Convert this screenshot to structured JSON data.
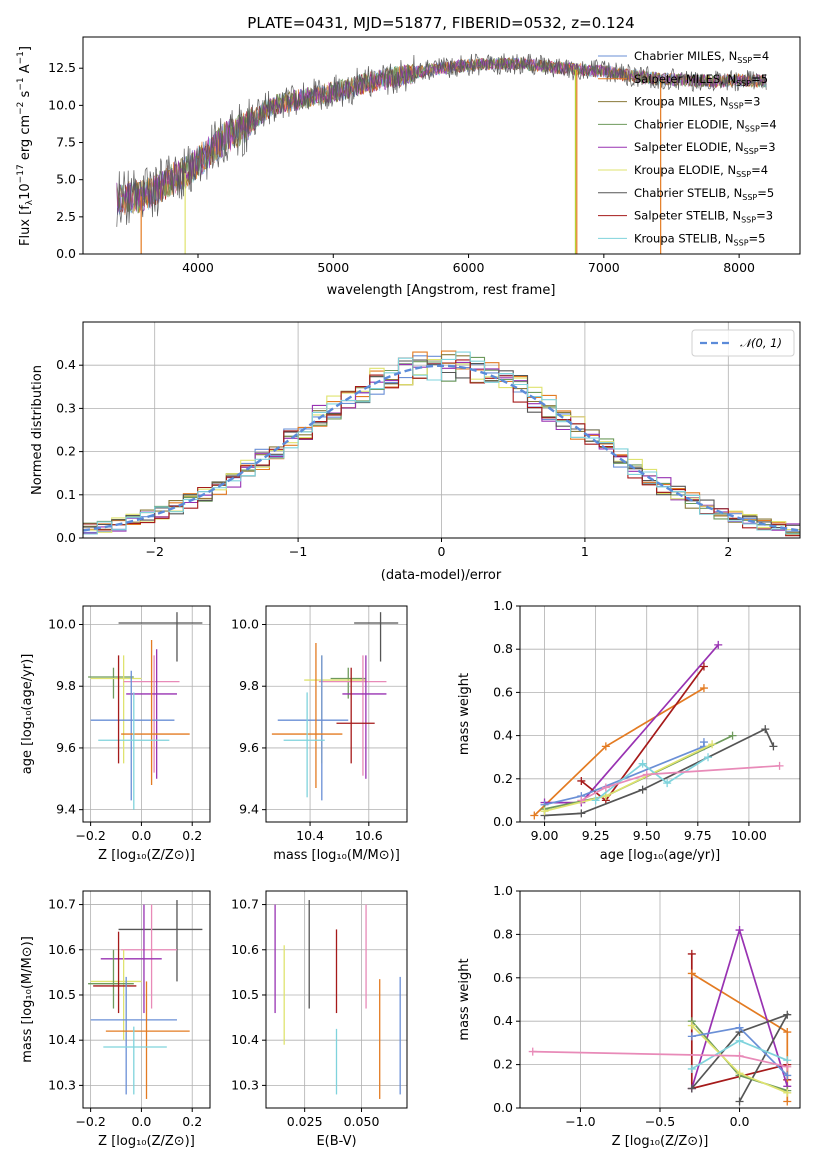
{
  "colors": {
    "c1": "#6a8fd6",
    "c2": "#e37b22",
    "c3": "#8a7a3a",
    "c4": "#6e9a5c",
    "c5": "#9832b2",
    "c6": "#dfe36f",
    "c7": "#555555",
    "c8": "#a51a1a",
    "c9": "#7fd3dc",
    "c10": "#e88ab8",
    "c11": "#b7d236",
    "c12": "#7a6fc2"
  },
  "chart_data": [
    {
      "id": "spectrum",
      "type": "line",
      "title": "PLATE=0431, MJD=51877, FIBERID=0532, z=0.124",
      "xlabel": "wavelength [Angstrom, rest frame]",
      "ylabel": "Flux [fλ10⁻¹⁷ erg cm⁻² s⁻¹ A⁻¹]",
      "xlim": [
        3150,
        8450
      ],
      "ylim": [
        0,
        14.6
      ],
      "xticks": [
        "4000",
        "5000",
        "6000",
        "7000",
        "8000"
      ],
      "yticks": [
        "0.0",
        "2.5",
        "5.0",
        "7.5",
        "10.0",
        "12.5"
      ],
      "grid": false,
      "legend_position": "top-right",
      "legend": [
        {
          "name": "Chabrier MILES, N",
          "sub": "SSP",
          "suffix": "=4"
        },
        {
          "name": "Salpeter MILES, N",
          "sub": "SSP",
          "suffix": "=5"
        },
        {
          "name": "Kroupa MILES, N",
          "sub": "SSP",
          "suffix": "=3"
        },
        {
          "name": "Chabrier ELODIE, N",
          "sub": "SSP",
          "suffix": "=4"
        },
        {
          "name": "Salpeter ELODIE, N",
          "sub": "SSP",
          "suffix": "=3"
        },
        {
          "name": "Kroupa ELODIE, N",
          "sub": "SSP",
          "suffix": "=4"
        },
        {
          "name": "Chabrier STELIB, N",
          "sub": "SSP",
          "suffix": "=5"
        },
        {
          "name": "Salpeter STELIB, N",
          "sub": "SSP",
          "suffix": "=3"
        },
        {
          "name": "Kroupa STELIB, N",
          "sub": "SSP",
          "suffix": "=5"
        }
      ],
      "continuum": [
        [
          3400,
          3.7
        ],
        [
          3500,
          3.8
        ],
        [
          3600,
          3.9
        ],
        [
          3700,
          4.4
        ],
        [
          3800,
          5.0
        ],
        [
          3900,
          5.4
        ],
        [
          4000,
          6.2
        ],
        [
          4100,
          7.0
        ],
        [
          4200,
          7.8
        ],
        [
          4300,
          8.3
        ],
        [
          4400,
          8.9
        ],
        [
          4500,
          9.7
        ],
        [
          4600,
          10.1
        ],
        [
          4700,
          10.3
        ],
        [
          4800,
          10.5
        ],
        [
          4900,
          10.7
        ],
        [
          5000,
          10.9
        ],
        [
          5100,
          11.1
        ],
        [
          5200,
          11.4
        ],
        [
          5300,
          11.6
        ],
        [
          5400,
          11.8
        ],
        [
          5500,
          12.0
        ],
        [
          5600,
          12.2
        ],
        [
          5700,
          12.4
        ],
        [
          5800,
          12.5
        ],
        [
          5900,
          12.6
        ],
        [
          6000,
          12.7
        ],
        [
          6200,
          12.8
        ],
        [
          6400,
          12.8
        ],
        [
          6600,
          12.6
        ],
        [
          6800,
          12.4
        ],
        [
          7000,
          12.3
        ],
        [
          7200,
          12.0
        ],
        [
          7400,
          11.8
        ],
        [
          7600,
          11.7
        ],
        [
          7800,
          11.6
        ],
        [
          8000,
          11.7
        ],
        [
          8200,
          11.6
        ]
      ],
      "drops": [
        {
          "x": 3580,
          "color": "c2"
        },
        {
          "x": 3905,
          "color": "c6"
        },
        {
          "x": 6790,
          "color": "c11"
        },
        {
          "x": 6800,
          "color": "c2"
        },
        {
          "x": 7420,
          "color": "c2"
        }
      ]
    },
    {
      "id": "residuals",
      "type": "histogram",
      "xlabel": "(data-model)/error",
      "ylabel": "Normed distribution",
      "xlim": [
        -2.5,
        2.5
      ],
      "ylim": [
        0,
        0.5
      ],
      "xticks": [
        "−2",
        "−1",
        "0",
        "1",
        "2"
      ],
      "yticks": [
        "0.0",
        "0.1",
        "0.2",
        "0.3",
        "0.4"
      ],
      "grid": true,
      "legend_position": "top-right",
      "legend_label": "𝒩(0, 1)",
      "bin_width": 0.1
    },
    {
      "id": "age-z",
      "type": "errorbar",
      "xlabel": "Z [log₁₀(Z/Z⊙)]",
      "ylabel": "age  [log₁₀(age/yr)]",
      "xlim": [
        -0.23,
        0.27
      ],
      "ylim": [
        9.36,
        10.06
      ],
      "xtick_values": [
        -0.2,
        0.0,
        0.2
      ],
      "xticks": [
        "−0.2",
        "0.0",
        "0.2"
      ],
      "ytick_values": [
        9.4,
        9.6,
        9.8,
        10.0
      ],
      "yticks": [
        "9.4",
        "9.6",
        "9.8",
        "10.0"
      ],
      "points": [
        {
          "x": 0.14,
          "xl": -0.09,
          "xh": 0.24,
          "y": 10.005,
          "yl": 9.88,
          "yh": 10.04,
          "color": "c7"
        },
        {
          "x": -0.11,
          "xl": -0.21,
          "xh": -0.03,
          "y": 9.83,
          "yl": 9.76,
          "yh": 9.86,
          "color": "c4"
        },
        {
          "x": -0.07,
          "xl": -0.2,
          "xh": 0.0,
          "y": 9.825,
          "yl": 9.55,
          "yh": 9.9,
          "color": "c6"
        },
        {
          "x": 0.05,
          "xl": -0.07,
          "xh": 0.15,
          "y": 9.815,
          "yl": 9.52,
          "yh": 9.9,
          "color": "c10"
        },
        {
          "x": 0.06,
          "xl": -0.06,
          "xh": 0.14,
          "y": 9.775,
          "yl": 9.5,
          "yh": 9.92,
          "color": "c5"
        },
        {
          "x": -0.04,
          "xl": -0.2,
          "xh": 0.13,
          "y": 9.69,
          "yl": 9.43,
          "yh": 9.85,
          "color": "c1"
        },
        {
          "x": 0.04,
          "xl": -0.08,
          "xh": 0.19,
          "y": 9.645,
          "yl": 9.48,
          "yh": 9.95,
          "color": "c2"
        },
        {
          "x": -0.03,
          "xl": -0.17,
          "xh": 0.11,
          "y": 9.625,
          "yl": 9.4,
          "yh": 9.78,
          "color": "c9"
        },
        {
          "x": -0.09,
          "xl": -0.09,
          "xh": -0.09,
          "y": 9.72,
          "yl": 9.55,
          "yh": 9.9,
          "color": "c8"
        }
      ]
    },
    {
      "id": "age-mass",
      "type": "errorbar",
      "xlabel": "mass [log₁₀(M/M⊙)]",
      "ylabel": "",
      "xlim": [
        10.25,
        10.73
      ],
      "ylim": [
        9.36,
        10.06
      ],
      "xtick_values": [
        10.4,
        10.6
      ],
      "xticks": [
        "10.4",
        "10.6"
      ],
      "ytick_values": [
        9.4,
        9.6,
        9.8,
        10.0
      ],
      "yticks": [
        "9.4",
        "9.6",
        "9.8",
        "10.0"
      ],
      "points": [
        {
          "x": 10.64,
          "xl": 10.55,
          "xh": 10.7,
          "y": 10.005,
          "yl": 9.88,
          "yh": 10.04,
          "color": "c7"
        },
        {
          "x": 10.53,
          "xl": 10.47,
          "xh": 10.59,
          "y": 9.825,
          "yl": 9.76,
          "yh": 9.86,
          "color": "c4"
        },
        {
          "x": 10.44,
          "xl": 10.38,
          "xh": 10.59,
          "y": 9.82,
          "yl": 9.55,
          "yh": 9.9,
          "color": "c6"
        },
        {
          "x": 10.58,
          "xl": 10.43,
          "xh": 10.66,
          "y": 9.815,
          "yl": 9.51,
          "yh": 9.9,
          "color": "c10"
        },
        {
          "x": 10.59,
          "xl": 10.51,
          "xh": 10.66,
          "y": 9.775,
          "yl": 9.5,
          "yh": 9.9,
          "color": "c5"
        },
        {
          "x": 10.44,
          "xl": 10.29,
          "xh": 10.53,
          "y": 9.69,
          "yl": 9.43,
          "yh": 9.9,
          "color": "c1"
        },
        {
          "x": 10.42,
          "xl": 10.27,
          "xh": 10.51,
          "y": 9.645,
          "yl": 9.47,
          "yh": 9.94,
          "color": "c2"
        },
        {
          "x": 10.39,
          "xl": 10.31,
          "xh": 10.45,
          "y": 9.625,
          "yl": 9.44,
          "yh": 9.78,
          "color": "c9"
        },
        {
          "x": 10.54,
          "xl": 10.49,
          "xh": 10.62,
          "y": 9.68,
          "yl": 9.55,
          "yh": 9.86,
          "color": "c8"
        }
      ]
    },
    {
      "id": "mw-age",
      "type": "line",
      "xlabel": "age  [log₁₀(age/yr)]",
      "ylabel": "mass weight",
      "xlim": [
        8.88,
        10.25
      ],
      "ylim": [
        0,
        1
      ],
      "xtick_values": [
        9.0,
        9.25,
        9.5,
        9.75,
        10.0
      ],
      "xticks": [
        "9.00",
        "9.25",
        "9.50",
        "9.75",
        "10.00"
      ],
      "ytick_values": [
        0.0,
        0.2,
        0.4,
        0.6,
        0.8,
        1.0
      ],
      "yticks": [
        "0.0",
        "0.2",
        "0.4",
        "0.6",
        "0.8",
        "1.0"
      ],
      "series": [
        {
          "color": "c2",
          "points": [
            [
              8.95,
              0.03
            ],
            [
              9.3,
              0.35
            ],
            [
              9.78,
              0.62
            ]
          ]
        },
        {
          "color": "c5",
          "points": [
            [
              9.0,
              0.09
            ],
            [
              9.18,
              0.09
            ],
            [
              9.85,
              0.82
            ]
          ]
        },
        {
          "color": "c8",
          "points": [
            [
              9.18,
              0.19
            ],
            [
              9.3,
              0.1
            ],
            [
              9.78,
              0.72
            ]
          ]
        },
        {
          "color": "c7",
          "points": [
            [
              9.0,
              0.03
            ],
            [
              9.18,
              0.04
            ],
            [
              9.48,
              0.15
            ],
            [
              10.08,
              0.43
            ],
            [
              10.12,
              0.35
            ]
          ]
        },
        {
          "color": "c1",
          "points": [
            [
              9.0,
              0.08
            ],
            [
              9.18,
              0.12
            ],
            [
              9.78,
              0.35
            ],
            [
              9.78,
              0.37
            ]
          ]
        },
        {
          "color": "c4",
          "points": [
            [
              9.0,
              0.06
            ],
            [
              9.3,
              0.12
            ],
            [
              9.92,
              0.4
            ]
          ]
        },
        {
          "color": "c6",
          "points": [
            [
              9.0,
              0.05
            ],
            [
              9.3,
              0.12
            ],
            [
              9.82,
              0.36
            ]
          ]
        },
        {
          "color": "c9",
          "points": [
            [
              9.25,
              0.1
            ],
            [
              9.48,
              0.27
            ],
            [
              9.6,
              0.18
            ],
            [
              9.8,
              0.3
            ]
          ]
        },
        {
          "color": "c10",
          "points": [
            [
              9.18,
              0.1
            ],
            [
              9.3,
              0.16
            ],
            [
              9.5,
              0.22
            ],
            [
              10.15,
              0.26
            ]
          ]
        }
      ]
    },
    {
      "id": "mass-z",
      "type": "errorbar",
      "xlabel": "Z [log₁₀(Z/Z⊙)]",
      "ylabel": "mass [log₁₀(M/M⊙)]",
      "xlim": [
        -0.23,
        0.27
      ],
      "ylim": [
        10.25,
        10.73
      ],
      "xtick_values": [
        -0.2,
        0.0,
        0.2
      ],
      "xticks": [
        "−0.2",
        "0.0",
        "0.2"
      ],
      "ytick_values": [
        10.3,
        10.4,
        10.5,
        10.6,
        10.7
      ],
      "yticks": [
        "10.3",
        "10.4",
        "10.5",
        "10.6",
        "10.7"
      ],
      "points": [
        {
          "x": 0.14,
          "xl": -0.09,
          "xh": 0.24,
          "y": 10.645,
          "yl": 10.53,
          "yh": 10.71,
          "color": "c7"
        },
        {
          "x": 0.04,
          "xl": -0.08,
          "xh": 0.14,
          "y": 10.6,
          "yl": 10.47,
          "yh": 10.7,
          "color": "c10"
        },
        {
          "x": 0.01,
          "xl": -0.16,
          "xh": 0.08,
          "y": 10.58,
          "yl": 10.46,
          "yh": 10.7,
          "color": "c5"
        },
        {
          "x": -0.07,
          "xl": -0.2,
          "xh": 0.0,
          "y": 10.53,
          "yl": 10.4,
          "yh": 10.6,
          "color": "c6"
        },
        {
          "x": -0.11,
          "xl": -0.21,
          "xh": -0.03,
          "y": 10.525,
          "yl": 10.47,
          "yh": 10.6,
          "color": "c4"
        },
        {
          "x": -0.09,
          "xl": -0.19,
          "xh": -0.02,
          "y": 10.52,
          "yl": 10.46,
          "yh": 10.64,
          "color": "c8"
        },
        {
          "x": -0.06,
          "xl": -0.2,
          "xh": 0.14,
          "y": 10.445,
          "yl": 10.28,
          "yh": 10.54,
          "color": "c1"
        },
        {
          "x": 0.02,
          "xl": -0.14,
          "xh": 0.19,
          "y": 10.42,
          "yl": 10.27,
          "yh": 10.53,
          "color": "c2"
        },
        {
          "x": -0.03,
          "xl": -0.15,
          "xh": 0.1,
          "y": 10.385,
          "yl": 10.28,
          "yh": 10.43,
          "color": "c9"
        }
      ]
    },
    {
      "id": "mass-ebv",
      "type": "errorbar",
      "xlabel": "E(B-V)",
      "ylabel": "",
      "xlim": [
        0.008,
        0.07
      ],
      "ylim": [
        10.25,
        10.73
      ],
      "xtick_values": [
        0.025,
        0.05
      ],
      "xticks": [
        "0.025",
        "0.050"
      ],
      "ytick_values": [
        10.3,
        10.4,
        10.5,
        10.6,
        10.7
      ],
      "yticks": [
        "10.3",
        "10.4",
        "10.5",
        "10.6",
        "10.7"
      ],
      "points": [
        {
          "x": 0.012,
          "y": 10.58,
          "yl": 10.46,
          "yh": 10.7,
          "color": "c5"
        },
        {
          "x": 0.016,
          "y": 10.5,
          "yl": 10.39,
          "yh": 10.61,
          "color": "c6"
        },
        {
          "x": 0.027,
          "y": 10.6,
          "yl": 10.47,
          "yh": 10.71,
          "color": "c7"
        },
        {
          "x": 0.039,
          "y": 10.55,
          "yl": 10.46,
          "yh": 10.645,
          "color": "c8"
        },
        {
          "x": 0.039,
          "y": 10.35,
          "yl": 10.28,
          "yh": 10.425,
          "color": "c9"
        },
        {
          "x": 0.052,
          "y": 10.6,
          "yl": 10.47,
          "yh": 10.7,
          "color": "c10"
        },
        {
          "x": 0.058,
          "y": 10.4,
          "yl": 10.27,
          "yh": 10.535,
          "color": "c2"
        },
        {
          "x": 0.067,
          "y": 10.41,
          "yl": 10.28,
          "yh": 10.54,
          "color": "c1"
        }
      ]
    },
    {
      "id": "mw-z",
      "type": "line",
      "xlabel": "Z [log₁₀(Z/Z⊙)]",
      "ylabel": "mass weight",
      "xlim": [
        -1.38,
        0.38
      ],
      "ylim": [
        0,
        1
      ],
      "xtick_values": [
        -1.0,
        -0.5,
        0.0
      ],
      "xticks": [
        "−1.0",
        "−0.5",
        "0.0"
      ],
      "ytick_values": [
        0.0,
        0.2,
        0.4,
        0.6,
        0.8,
        1.0
      ],
      "yticks": [
        "0.0",
        "0.2",
        "0.4",
        "0.6",
        "0.8",
        "1.0"
      ],
      "series": [
        {
          "color": "c8",
          "points": [
            [
              -0.3,
              0.71
            ],
            [
              -0.3,
              0.09
            ],
            [
              0.3,
              0.2
            ],
            [
              0.3,
              0.13
            ]
          ]
        },
        {
          "color": "c2",
          "points": [
            [
              -0.3,
              0.62
            ],
            [
              0.3,
              0.35
            ],
            [
              0.3,
              0.03
            ]
          ]
        },
        {
          "color": "c5",
          "points": [
            [
              -0.3,
              0.09
            ],
            [
              0.0,
              0.82
            ],
            [
              0.3,
              0.1
            ]
          ]
        },
        {
          "color": "c7",
          "points": [
            [
              -0.3,
              0.09
            ],
            [
              0.0,
              0.35
            ],
            [
              0.3,
              0.43
            ],
            [
              0.0,
              0.03
            ]
          ]
        },
        {
          "color": "c4",
          "points": [
            [
              -0.3,
              0.4
            ],
            [
              0.0,
              0.15
            ],
            [
              0.3,
              0.08
            ]
          ]
        },
        {
          "color": "c6",
          "points": [
            [
              -0.3,
              0.38
            ],
            [
              0.0,
              0.16
            ],
            [
              0.3,
              0.07
            ]
          ]
        },
        {
          "color": "c1",
          "points": [
            [
              -0.3,
              0.33
            ],
            [
              0.0,
              0.37
            ],
            [
              0.3,
              0.15
            ]
          ]
        },
        {
          "color": "c9",
          "points": [
            [
              -0.3,
              0.18
            ],
            [
              0.0,
              0.31
            ],
            [
              0.3,
              0.22
            ]
          ]
        },
        {
          "color": "c10",
          "points": [
            [
              -1.3,
              0.26
            ],
            [
              0.0,
              0.24
            ],
            [
              0.3,
              0.19
            ]
          ]
        }
      ]
    }
  ]
}
